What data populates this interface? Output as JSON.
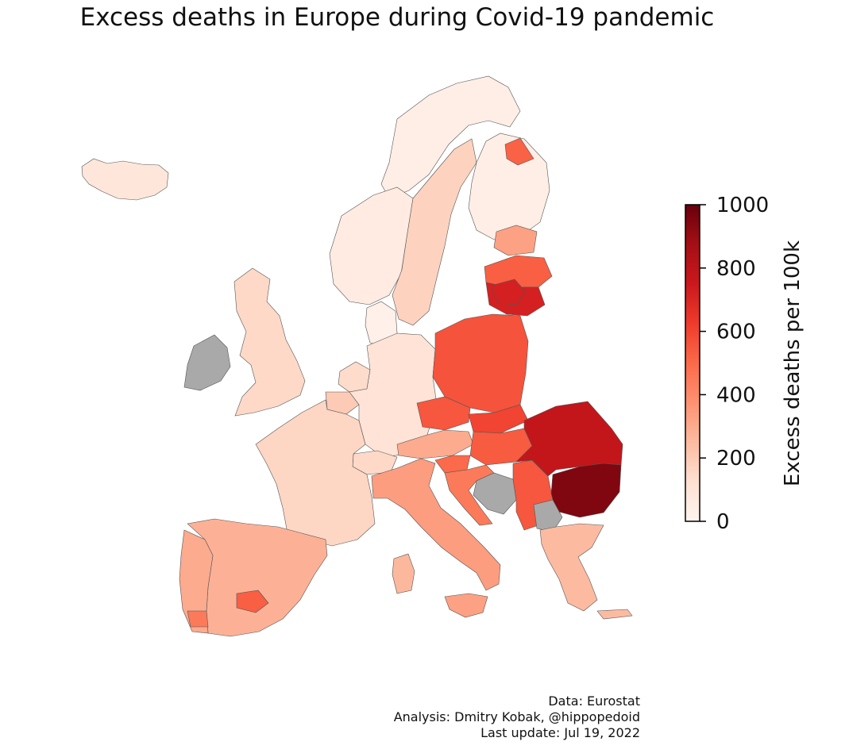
{
  "title": "Excess deaths in Europe during Covid-19 pandemic",
  "colorbar": {
    "label": "Excess deaths per 100k",
    "min": 0,
    "max": 1000,
    "ticks": [
      "1000",
      "800",
      "600",
      "400",
      "200",
      "0"
    ],
    "palette": [
      "#fff5f0",
      "#fee0d2",
      "#fcbba1",
      "#fc9272",
      "#fb6a4a",
      "#ef3b2c",
      "#cb181d",
      "#a50f15",
      "#67000d"
    ],
    "no_data_color": "#a9a9a9"
  },
  "credits": {
    "line1": "Data: Eurostat",
    "line2": "Analysis: Dmitry Kobak, @hippopedoid",
    "line3": "Last update: Jul 19, 2022"
  },
  "regions": [
    {
      "name": "Iceland",
      "value": 90
    },
    {
      "name": "Norway north",
      "value": 40
    },
    {
      "name": "Norway south",
      "value": 60
    },
    {
      "name": "Sweden",
      "value": 170
    },
    {
      "name": "Finland",
      "value": 40
    },
    {
      "name": "Finland east",
      "value": 520
    },
    {
      "name": "Estonia",
      "value": 330
    },
    {
      "name": "Latvia",
      "value": 530
    },
    {
      "name": "Lithuania",
      "value": 720
    },
    {
      "name": "Denmark",
      "value": 30
    },
    {
      "name": "Ireland",
      "value": null
    },
    {
      "name": "United Kingdom",
      "value": 150
    },
    {
      "name": "Netherlands",
      "value": 140
    },
    {
      "name": "Belgium",
      "value": 200
    },
    {
      "name": "Germany",
      "value": 110
    },
    {
      "name": "Poland",
      "value": 560
    },
    {
      "name": "France",
      "value": 160
    },
    {
      "name": "Czechia",
      "value": 550
    },
    {
      "name": "Slovakia",
      "value": 600
    },
    {
      "name": "Austria",
      "value": 300
    },
    {
      "name": "Switzerland",
      "value": 150
    },
    {
      "name": "Hungary",
      "value": 540
    },
    {
      "name": "Slovenia",
      "value": 500
    },
    {
      "name": "Croatia",
      "value": 450
    },
    {
      "name": "Bosnia and Herzegovina",
      "value": null
    },
    {
      "name": "Serbia",
      "value": 550
    },
    {
      "name": "Romania",
      "value": 780
    },
    {
      "name": "Bulgaria",
      "value": 950
    },
    {
      "name": "North Macedonia",
      "value": null
    },
    {
      "name": "Greece",
      "value": 250
    },
    {
      "name": "Italy",
      "value": 340
    },
    {
      "name": "Sardinia",
      "value": 260
    },
    {
      "name": "Sicily",
      "value": 330
    },
    {
      "name": "Spain",
      "value": 280
    },
    {
      "name": "Castilla-La Mancha",
      "value": 530
    },
    {
      "name": "Portugal",
      "value": 300
    },
    {
      "name": "Algarve region",
      "value": 450
    }
  ]
}
